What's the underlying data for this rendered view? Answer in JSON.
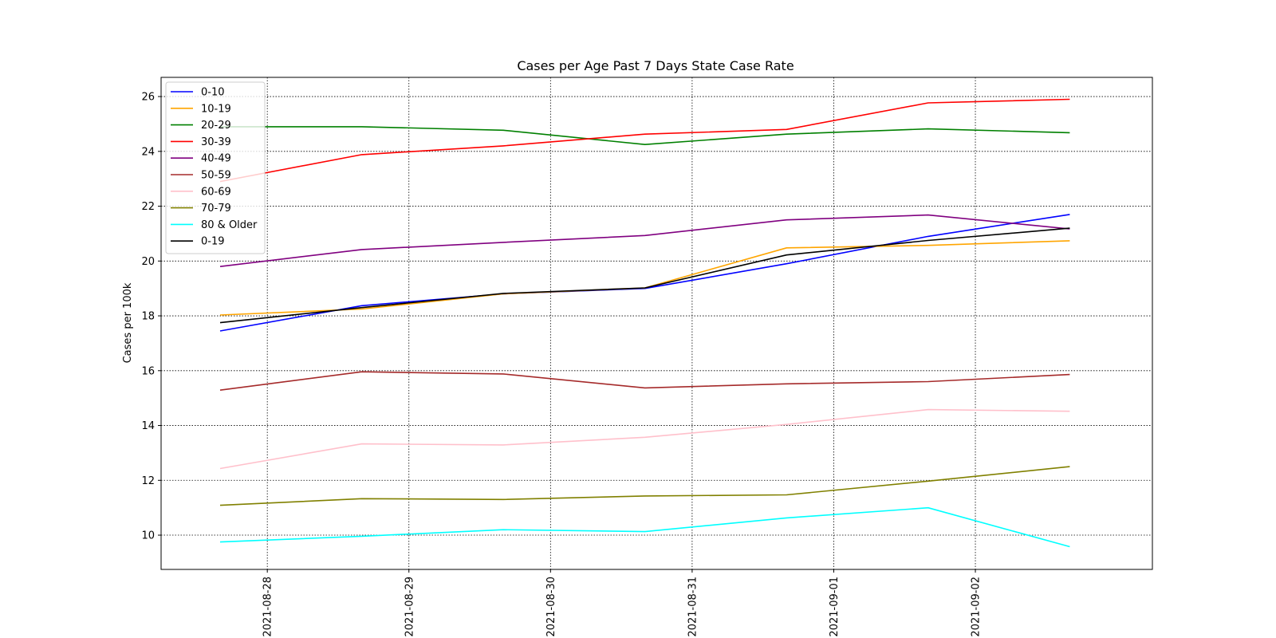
{
  "chart_data": {
    "type": "line",
    "title": "Cases per Age Past 7 Days State Case Rate",
    "xlabel": "",
    "ylabel": "Cases per 100k",
    "x": [
      "2021-08-27 16:00",
      "2021-08-28 16:00",
      "2021-08-29 16:00",
      "2021-08-30 16:00",
      "2021-08-31 16:00",
      "2021-09-01 16:00",
      "2021-09-02 16:00"
    ],
    "x_ticks": [
      "2021-08-28",
      "2021-08-29",
      "2021-08-30",
      "2021-08-31",
      "2021-09-01",
      "2021-09-02"
    ],
    "xlim": [
      "2021-08-27 06:00",
      "2021-09-03 06:00"
    ],
    "ylim": [
      8.75,
      26.7
    ],
    "y_ticks": [
      10,
      12,
      14,
      16,
      18,
      20,
      22,
      24,
      26
    ],
    "grid": true,
    "legend_position": "top-left",
    "series": [
      {
        "name": "0-10",
        "color": "#0000ff",
        "values": [
          17.45,
          18.37,
          18.8,
          19.0,
          19.9,
          20.9,
          21.7
        ]
      },
      {
        "name": "10-19",
        "color": "#ffa500",
        "values": [
          18.03,
          18.25,
          18.8,
          19.02,
          20.48,
          20.57,
          20.74
        ]
      },
      {
        "name": "20-29",
        "color": "#008000",
        "values": [
          24.9,
          24.9,
          24.77,
          24.25,
          24.63,
          24.82,
          24.68
        ]
      },
      {
        "name": "30-39",
        "color": "#ff0000",
        "values": [
          22.9,
          23.88,
          24.2,
          24.63,
          24.8,
          25.77,
          25.9
        ]
      },
      {
        "name": "40-49",
        "color": "#800080",
        "values": [
          19.8,
          20.42,
          20.68,
          20.93,
          21.5,
          21.68,
          21.17
        ]
      },
      {
        "name": "50-59",
        "color": "#a52a2a",
        "values": [
          15.29,
          15.96,
          15.88,
          15.37,
          15.52,
          15.6,
          15.86
        ]
      },
      {
        "name": "60-69",
        "color": "#ffc0cb",
        "values": [
          12.43,
          13.33,
          13.29,
          13.57,
          14.04,
          14.58,
          14.52
        ]
      },
      {
        "name": "70-79",
        "color": "#808000",
        "values": [
          11.09,
          11.33,
          11.3,
          11.43,
          11.47,
          11.97,
          12.5
        ]
      },
      {
        "name": "80 & Older",
        "color": "#00ffff",
        "values": [
          9.75,
          9.96,
          10.2,
          10.13,
          10.63,
          11.0,
          9.58
        ]
      },
      {
        "name": "0-19",
        "color": "#000000",
        "values": [
          17.75,
          18.3,
          18.82,
          19.02,
          20.22,
          20.75,
          21.2
        ]
      }
    ]
  }
}
